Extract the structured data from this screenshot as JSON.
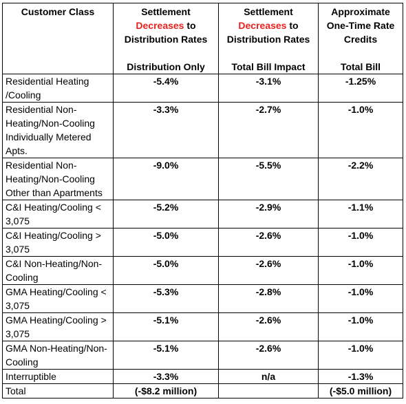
{
  "table": {
    "header": [
      {
        "title": "Customer Class"
      },
      {
        "line1": "Settlement",
        "highlight": "Decreases",
        "after": "to",
        "line3": "Distribution Rates",
        "sub": "Distribution Only"
      },
      {
        "line1": "Settlement",
        "highlight": "Decreases",
        "after": "to",
        "line3": "Distribution Rates",
        "sub": "Total Bill Impact"
      },
      {
        "line1": "Approximate",
        "line2": "One-Time Rate",
        "line3": "Credits",
        "sub": "Total Bill"
      }
    ],
    "rows": [
      [
        "Residential Heating /Cooling",
        "-5.4%",
        "-3.1%",
        "-1.25%"
      ],
      [
        "Residential Non-Heating/Non-Cooling Individually Metered Apts.",
        "-3.3%",
        "-2.7%",
        "-1.0%"
      ],
      [
        "Residential Non-Heating/Non-Cooling Other than Apartments",
        "-9.0%",
        "-5.5%",
        "-2.2%"
      ],
      [
        "C&I Heating/Cooling < 3,075",
        "-5.2%",
        "-2.9%",
        "-1.1%"
      ],
      [
        "C&I Heating/Cooling > 3,075",
        "-5.0%",
        "-2.6%",
        "-1.0%"
      ],
      [
        "C&I Non-Heating/Non-Cooling",
        "-5.0%",
        "-2.6%",
        "-1.0%"
      ],
      [
        "GMA Heating/Cooling < 3,075",
        "-5.3%",
        "-2.8%",
        "-1.0%"
      ],
      [
        "GMA Heating/Cooling > 3,075",
        "-5.1%",
        "-2.6%",
        "-1.0%"
      ],
      [
        "GMA Non-Heating/Non-Cooling",
        "-5.1%",
        "-2.6%",
        "-1.0%"
      ],
      [
        "Interruptible",
        "-3.3%",
        "n/a",
        "-1.3%"
      ],
      [
        "Total",
        "(-$8.2 million)",
        null,
        "(-$5.0 million)"
      ]
    ]
  }
}
